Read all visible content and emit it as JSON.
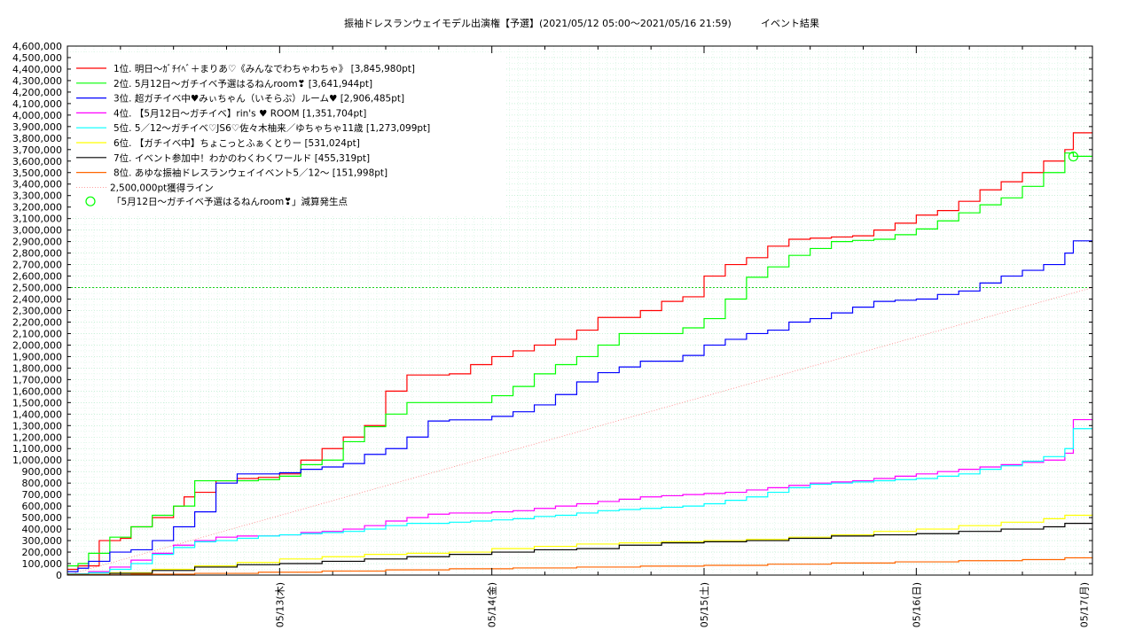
{
  "chart_data": {
    "type": "line",
    "title": "振袖ドレスランウェイモデル出演権【予選】(2021/05/12 05:00〜2021/05/16 21:59)",
    "subtitle": "イベント結果",
    "xlabel": "",
    "ylabel": "",
    "ylim": [
      0,
      4600000
    ],
    "xlim": [
      0,
      4.83
    ],
    "x_tick_labels": [
      {
        "x": 1.0,
        "label": "05/13(木)"
      },
      {
        "x": 2.0,
        "label": "05/14(金)"
      },
      {
        "x": 3.0,
        "label": "05/15(土)"
      },
      {
        "x": 4.0,
        "label": "05/16(日)"
      },
      {
        "x": 4.79,
        "label": "05/17(月)"
      }
    ],
    "y_ticks": [
      0,
      100000,
      200000,
      300000,
      400000,
      500000,
      600000,
      700000,
      800000,
      900000,
      1000000,
      1100000,
      1200000,
      1300000,
      1400000,
      1500000,
      1600000,
      1700000,
      1800000,
      1900000,
      2000000,
      2100000,
      2200000,
      2300000,
      2400000,
      2500000,
      2600000,
      2700000,
      2800000,
      2900000,
      3000000,
      3100000,
      3200000,
      3300000,
      3400000,
      3500000,
      3600000,
      3700000,
      3800000,
      3900000,
      4000000,
      4100000,
      4200000,
      4300000,
      4400000,
      4500000,
      4600000
    ],
    "y_tick_labels": [
      "0",
      "100,000",
      "200,000",
      "300,000",
      "400,000",
      "500,000",
      "600,000",
      "700,000",
      "800,000",
      "900,000",
      "1,000,000",
      "1,100,000",
      "1,200,000",
      "1,300,000",
      "1,400,000",
      "1,500,000",
      "1,600,000",
      "1,700,000",
      "1,800,000",
      "1,900,000",
      "2,000,000",
      "2,100,000",
      "2,200,000",
      "2,300,000",
      "2,400,000",
      "2,500,000",
      "2,600,000",
      "2,700,000",
      "2,800,000",
      "2,900,000",
      "3,000,000",
      "3,100,000",
      "3,200,000",
      "3,300,000",
      "3,400,000",
      "3,500,000",
      "3,600,000",
      "3,700,000",
      "3,800,000",
      "3,900,000",
      "4,000,000",
      "4,100,000",
      "4,200,000",
      "4,300,000",
      "4,400,000",
      "4,500,000",
      "4,600,000"
    ],
    "grid": true,
    "legend_position": "top-left",
    "series": [
      {
        "name": "1位. 明日〜ｶﾞﾁｲﾍﾞ＋まりあ♡《みんなでわちゃわちゃ》 [3,845,980pt]",
        "color": "#ff0000",
        "x": [
          0,
          0.05,
          0.15,
          0.25,
          0.3,
          0.4,
          0.5,
          0.55,
          0.6,
          0.7,
          0.8,
          0.9,
          1.0,
          1.1,
          1.2,
          1.3,
          1.4,
          1.5,
          1.6,
          1.7,
          1.8,
          1.9,
          2.0,
          2.1,
          2.2,
          2.3,
          2.4,
          2.5,
          2.6,
          2.7,
          2.8,
          2.9,
          3.0,
          3.1,
          3.2,
          3.3,
          3.4,
          3.5,
          3.6,
          3.7,
          3.8,
          3.9,
          4.0,
          4.1,
          4.2,
          4.3,
          4.4,
          4.5,
          4.6,
          4.7,
          4.74,
          4.83
        ],
        "y": [
          50000,
          80000,
          300000,
          320000,
          420000,
          500000,
          600000,
          680000,
          720000,
          820000,
          840000,
          850000,
          880000,
          1000000,
          1100000,
          1200000,
          1300000,
          1600000,
          1740000,
          1740000,
          1750000,
          1830000,
          1900000,
          1950000,
          2000000,
          2050000,
          2130000,
          2240000,
          2240000,
          2300000,
          2380000,
          2420000,
          2600000,
          2700000,
          2760000,
          2860000,
          2920000,
          2930000,
          2940000,
          2950000,
          3000000,
          3060000,
          3130000,
          3170000,
          3250000,
          3350000,
          3420000,
          3500000,
          3600000,
          3700000,
          3845980,
          3845980
        ]
      },
      {
        "name": "2位. 5月12日〜ガチイベ予選はるねんroom❣ [3,641,944pt]",
        "color": "#00ff00",
        "x": [
          0,
          0.05,
          0.1,
          0.2,
          0.3,
          0.4,
          0.5,
          0.6,
          0.7,
          0.8,
          0.9,
          1.0,
          1.1,
          1.2,
          1.3,
          1.4,
          1.5,
          1.6,
          1.7,
          1.8,
          1.9,
          2.0,
          2.1,
          2.2,
          2.3,
          2.4,
          2.5,
          2.6,
          2.7,
          2.8,
          2.9,
          3.0,
          3.1,
          3.2,
          3.3,
          3.4,
          3.5,
          3.6,
          3.7,
          3.8,
          3.9,
          4.0,
          4.1,
          4.2,
          4.3,
          4.4,
          4.5,
          4.6,
          4.7,
          4.74,
          4.83
        ],
        "y": [
          80000,
          100000,
          190000,
          330000,
          420000,
          520000,
          600000,
          820000,
          820000,
          820000,
          830000,
          860000,
          960000,
          1000000,
          1160000,
          1290000,
          1400000,
          1500000,
          1500000,
          1500000,
          1500000,
          1560000,
          1640000,
          1750000,
          1830000,
          1900000,
          2000000,
          2100000,
          2100000,
          2100000,
          2150000,
          2230000,
          2400000,
          2590000,
          2680000,
          2780000,
          2840000,
          2900000,
          2910000,
          2920000,
          2960000,
          3010000,
          3080000,
          3150000,
          3220000,
          3280000,
          3380000,
          3500000,
          3670000,
          3641944,
          3641944
        ]
      },
      {
        "name": "3位. 超ガチイベ中♥みぃちゃん（いそらぶ）ルーム♥ [2,906,485pt]",
        "color": "#0000ff",
        "x": [
          0,
          0.05,
          0.1,
          0.2,
          0.3,
          0.4,
          0.5,
          0.6,
          0.7,
          0.8,
          0.9,
          1.0,
          1.1,
          1.2,
          1.3,
          1.4,
          1.5,
          1.6,
          1.7,
          1.8,
          1.9,
          2.0,
          2.1,
          2.2,
          2.3,
          2.4,
          2.5,
          2.6,
          2.7,
          2.8,
          2.9,
          3.0,
          3.1,
          3.2,
          3.3,
          3.4,
          3.5,
          3.6,
          3.7,
          3.8,
          3.9,
          4.0,
          4.1,
          4.2,
          4.3,
          4.4,
          4.5,
          4.6,
          4.7,
          4.74,
          4.83
        ],
        "y": [
          30000,
          60000,
          120000,
          200000,
          220000,
          300000,
          420000,
          550000,
          800000,
          880000,
          880000,
          890000,
          920000,
          940000,
          970000,
          1050000,
          1100000,
          1200000,
          1340000,
          1350000,
          1350000,
          1380000,
          1420000,
          1480000,
          1570000,
          1680000,
          1760000,
          1810000,
          1860000,
          1860000,
          1910000,
          2000000,
          2050000,
          2100000,
          2130000,
          2200000,
          2230000,
          2280000,
          2330000,
          2380000,
          2390000,
          2400000,
          2440000,
          2470000,
          2540000,
          2600000,
          2650000,
          2700000,
          2800000,
          2906485,
          2906485
        ]
      },
      {
        "name": "4位. 【5月12日〜ガチイベ】rin's ♥ ROOM [1,351,704pt]",
        "color": "#ff00ff",
        "x": [
          0,
          0.1,
          0.2,
          0.3,
          0.4,
          0.5,
          0.6,
          0.7,
          0.8,
          0.9,
          1.0,
          1.1,
          1.2,
          1.3,
          1.4,
          1.5,
          1.6,
          1.7,
          1.8,
          1.9,
          2.0,
          2.1,
          2.2,
          2.3,
          2.4,
          2.5,
          2.6,
          2.7,
          2.8,
          2.9,
          3.0,
          3.1,
          3.2,
          3.3,
          3.4,
          3.5,
          3.6,
          3.7,
          3.8,
          3.9,
          4.0,
          4.1,
          4.2,
          4.3,
          4.4,
          4.5,
          4.6,
          4.7,
          4.74,
          4.83
        ],
        "y": [
          10000,
          30000,
          70000,
          130000,
          190000,
          260000,
          300000,
          330000,
          340000,
          340000,
          350000,
          370000,
          380000,
          400000,
          430000,
          470000,
          500000,
          530000,
          540000,
          540000,
          550000,
          560000,
          580000,
          600000,
          620000,
          640000,
          660000,
          680000,
          690000,
          700000,
          710000,
          720000,
          740000,
          760000,
          780000,
          800000,
          810000,
          820000,
          840000,
          860000,
          880000,
          900000,
          920000,
          940000,
          960000,
          980000,
          1000000,
          1060000,
          1351704,
          1351704
        ]
      },
      {
        "name": "5位. 5／12〜ガチイベ♡JS6♡佐々木柚来／ゆちゃちゃ11歳 [1,273,099pt]",
        "color": "#00ffff",
        "x": [
          0,
          0.1,
          0.2,
          0.3,
          0.4,
          0.5,
          0.6,
          0.7,
          0.8,
          0.9,
          1.0,
          1.1,
          1.2,
          1.3,
          1.4,
          1.5,
          1.6,
          1.7,
          1.8,
          1.9,
          2.0,
          2.1,
          2.2,
          2.3,
          2.4,
          2.5,
          2.6,
          2.7,
          2.8,
          2.9,
          3.0,
          3.1,
          3.2,
          3.3,
          3.4,
          3.5,
          3.6,
          3.7,
          3.8,
          3.9,
          4.0,
          4.1,
          4.2,
          4.3,
          4.4,
          4.5,
          4.6,
          4.7,
          4.74,
          4.83
        ],
        "y": [
          10000,
          20000,
          50000,
          100000,
          180000,
          240000,
          290000,
          300000,
          320000,
          340000,
          350000,
          360000,
          370000,
          380000,
          400000,
          430000,
          450000,
          450000,
          460000,
          470000,
          480000,
          490000,
          510000,
          520000,
          540000,
          560000,
          570000,
          580000,
          590000,
          600000,
          620000,
          650000,
          680000,
          720000,
          760000,
          790000,
          800000,
          810000,
          820000,
          830000,
          840000,
          860000,
          880000,
          920000,
          950000,
          990000,
          1030000,
          1100000,
          1273099,
          1273099
        ]
      },
      {
        "name": "6位. 【ガチイベ中】ちょこっとふぁくとりー [531,024pt]",
        "color": "#ffff00",
        "x": [
          0,
          0.2,
          0.4,
          0.6,
          0.8,
          1.0,
          1.2,
          1.4,
          1.6,
          1.8,
          2.0,
          2.2,
          2.4,
          2.6,
          2.8,
          3.0,
          3.2,
          3.4,
          3.6,
          3.8,
          4.0,
          4.2,
          4.4,
          4.6,
          4.7,
          4.83
        ],
        "y": [
          5000,
          20000,
          50000,
          80000,
          110000,
          140000,
          160000,
          180000,
          190000,
          200000,
          230000,
          250000,
          270000,
          280000,
          290000,
          300000,
          310000,
          330000,
          350000,
          380000,
          400000,
          430000,
          460000,
          490000,
          520000,
          531024
        ]
      },
      {
        "name": "7位. イベント参加中！わかのわくわくワールド [455,319pt]",
        "color": "#000000",
        "x": [
          0,
          0.2,
          0.4,
          0.6,
          0.8,
          1.0,
          1.2,
          1.4,
          1.6,
          1.8,
          2.0,
          2.2,
          2.4,
          2.6,
          2.8,
          3.0,
          3.2,
          3.4,
          3.6,
          3.8,
          4.0,
          4.2,
          4.4,
          4.6,
          4.7,
          4.83
        ],
        "y": [
          5000,
          15000,
          40000,
          70000,
          90000,
          100000,
          120000,
          140000,
          160000,
          180000,
          200000,
          220000,
          230000,
          260000,
          280000,
          290000,
          300000,
          320000,
          340000,
          350000,
          360000,
          380000,
          400000,
          420000,
          450000,
          455319
        ]
      },
      {
        "name": "8位. あゆな振袖ドレスランウェイイベント5／12〜 [151,998pt]",
        "color": "#ff6600",
        "x": [
          0,
          0.3,
          0.6,
          0.9,
          1.2,
          1.5,
          1.8,
          2.1,
          2.4,
          2.7,
          3.0,
          3.3,
          3.6,
          3.9,
          4.2,
          4.5,
          4.7,
          4.83
        ],
        "y": [
          2000,
          8000,
          15000,
          25000,
          35000,
          45000,
          55000,
          62000,
          70000,
          78000,
          85000,
          95000,
          105000,
          115000,
          125000,
          135000,
          150000,
          151998
        ]
      }
    ],
    "reference_line": {
      "name": "2,500,000pt獲得ライン",
      "color": "#ff8080",
      "x": [
        0,
        4.83
      ],
      "y": [
        0,
        2500000
      ]
    },
    "reference_hline": {
      "y": 2500000,
      "color": "#00cc00"
    },
    "marker": {
      "name": "「5月12日〜ガチイベ予選はるねんroom❣」減算発生点",
      "color": "#00ff00",
      "x": 4.74,
      "y": 3640000
    }
  }
}
